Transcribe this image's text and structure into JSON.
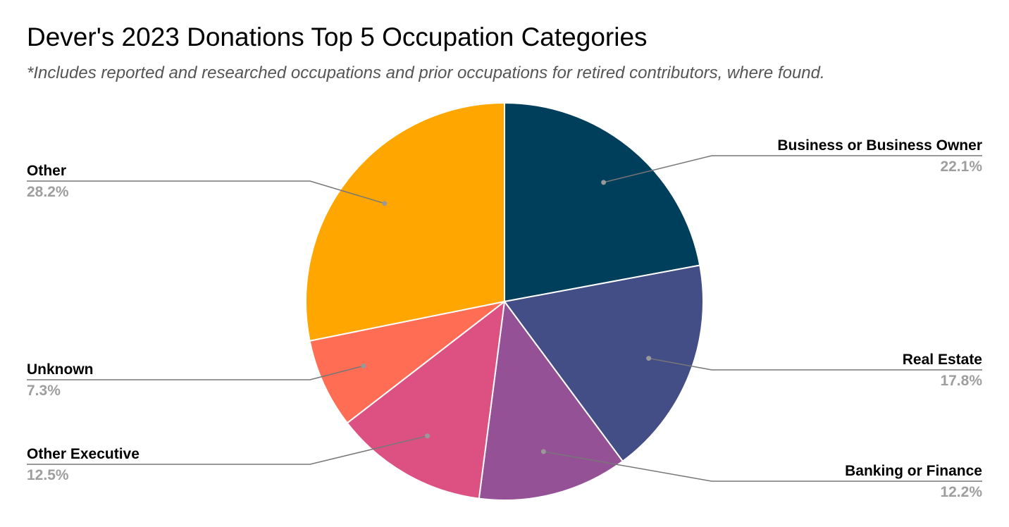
{
  "chart_data": {
    "type": "pie",
    "title": "Dever's 2023 Donations Top 5 Occupation Categories",
    "subtitle": "*Includes reported and researched occupations and prior occupations for retired contributors, where found.",
    "slices": [
      {
        "label": "Business or Business Owner",
        "value": 22.1,
        "value_label": "22.1%",
        "color": "#003f5c"
      },
      {
        "label": "Real Estate",
        "value": 17.8,
        "value_label": "17.8%",
        "color": "#444e86"
      },
      {
        "label": "Banking or Finance",
        "value": 12.2,
        "value_label": "12.2%",
        "color": "#955196"
      },
      {
        "label": "Other Executive",
        "value": 12.5,
        "value_label": "12.5%",
        "color": "#dd5182"
      },
      {
        "label": "Unknown",
        "value": 7.3,
        "value_label": "7.3%",
        "color": "#ff6e54"
      },
      {
        "label": "Other",
        "value": 28.2,
        "value_label": "28.2%",
        "color": "#ffa600"
      }
    ],
    "start_angle": "12 o'clock",
    "direction": "clockwise",
    "label_style": "outside with leader lines",
    "legend": "none"
  }
}
